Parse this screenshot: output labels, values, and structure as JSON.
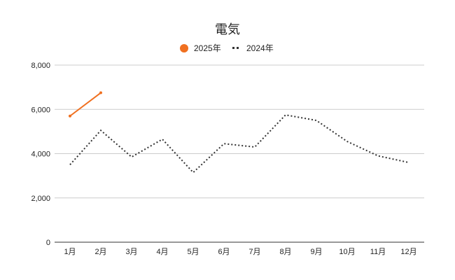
{
  "chart_data": {
    "type": "line",
    "title": "電気",
    "categories": [
      "1月",
      "2月",
      "3月",
      "4月",
      "5月",
      "6月",
      "7月",
      "8月",
      "9月",
      "10月",
      "11月",
      "12月"
    ],
    "series": [
      {
        "name": "2025年",
        "color": "#f07020",
        "style": "solid",
        "values": [
          5700,
          6750,
          null,
          null,
          null,
          null,
          null,
          null,
          null,
          null,
          null,
          null
        ]
      },
      {
        "name": "2024年",
        "color": "#333333",
        "style": "dotted",
        "values": [
          3500,
          5050,
          3850,
          4650,
          3150,
          4450,
          4300,
          5750,
          5500,
          4550,
          3900,
          3600
        ]
      }
    ],
    "ylim": [
      0,
      8000
    ],
    "yticks": [
      "0",
      "2,000",
      "4,000",
      "6,000",
      "8,000"
    ],
    "ytick_values": [
      0,
      2000,
      4000,
      6000,
      8000
    ],
    "grid": true,
    "legend_position": "top"
  }
}
